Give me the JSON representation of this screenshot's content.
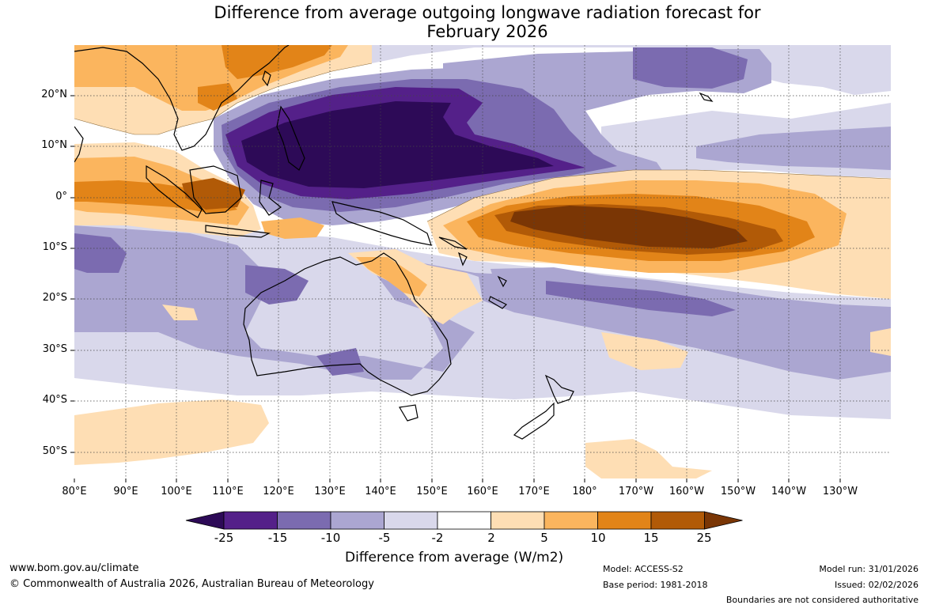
{
  "title": {
    "line1": "Difference from average outgoing longwave radiation forecast for",
    "line2": "February 2026"
  },
  "latitude_labels": [
    "20°N",
    "10°N",
    "0°",
    "10°S",
    "20°S",
    "30°S",
    "40°S",
    "50°S"
  ],
  "longitude_labels": [
    "80°E",
    "90°E",
    "100°E",
    "110°E",
    "120°E",
    "130°E",
    "140°E",
    "150°E",
    "160°E",
    "170°E",
    "180°",
    "170°W",
    "160°W",
    "150°W",
    "140°W",
    "130°W"
  ],
  "colorbar": {
    "ticks": [
      "-25",
      "-15",
      "-10",
      "-5",
      "-2",
      "2",
      "5",
      "10",
      "15",
      "25"
    ],
    "colors": [
      "#2d0a57",
      "#542089",
      "#7b6bb0",
      "#aba6d1",
      "#d9d8eb",
      "#ffffff",
      "#fedeb4",
      "#fbb55e",
      "#e28418",
      "#b15a07",
      "#7a3605"
    ],
    "label": "Difference from average (W/m2)"
  },
  "palette": {
    "p25": "#2d0a57",
    "p15": "#542089",
    "p10": "#7b6bb0",
    "p5": "#aba6d1",
    "p2": "#d9d8eb",
    "o2": "#fedeb4",
    "o5": "#fbb55e",
    "o10": "#e28418",
    "o15": "#b15a07",
    "o25": "#7a3605"
  },
  "footer": {
    "url": "www.bom.gov.au/climate",
    "copyright": "© Commonwealth of Australia 2026, Australian Bureau of Meteorology",
    "model": "Model: ACCESS-S2",
    "base_period": "Base period: 1981-2018",
    "model_run": "Model run: 31/01/2026",
    "issued": "Issued: 02/02/2026",
    "disclaimer": "Boundaries are not considered authoritative"
  }
}
